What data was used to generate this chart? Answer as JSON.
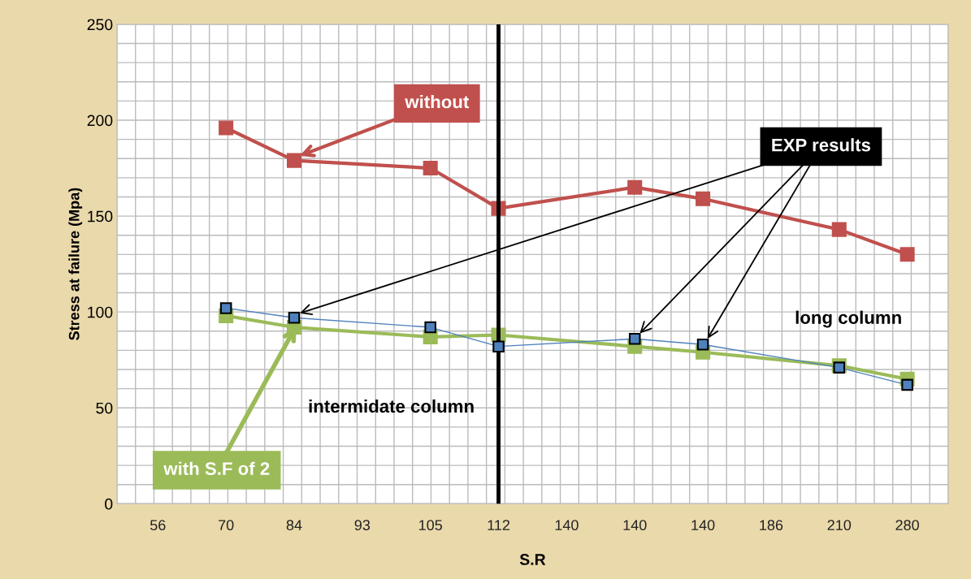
{
  "chart_data": {
    "type": "line",
    "xlabel": "S.R",
    "ylabel": "Stress at failure (Mpa)",
    "categories": [
      "56",
      "70",
      "84",
      "93",
      "105",
      "112",
      "140",
      "140",
      "140",
      "186",
      "210",
      "280"
    ],
    "ylim": [
      0,
      250
    ],
    "yticks": [
      0,
      50,
      100,
      150,
      200,
      250
    ],
    "grid": true,
    "line_style": "solid",
    "series": [
      {
        "name": "without",
        "color": "#c0504d",
        "marker": "square",
        "values": [
          null,
          196,
          179,
          null,
          175,
          154,
          null,
          165,
          159,
          null,
          143,
          130
        ]
      },
      {
        "name": "EXP results",
        "color": "#4f81bd",
        "marker": "square",
        "values": [
          null,
          102,
          97,
          null,
          92,
          82,
          null,
          86,
          83,
          null,
          71,
          62
        ]
      },
      {
        "name": "with S.F of 2",
        "color": "#9bbb59",
        "marker": "square",
        "values": [
          null,
          98,
          92,
          null,
          87,
          88,
          null,
          82,
          79,
          null,
          72,
          65
        ]
      }
    ],
    "ref_lines": [
      {
        "axis": "x",
        "value": "112",
        "color": "#000000"
      }
    ],
    "annotations": [
      "intermidate column",
      "long column"
    ]
  }
}
